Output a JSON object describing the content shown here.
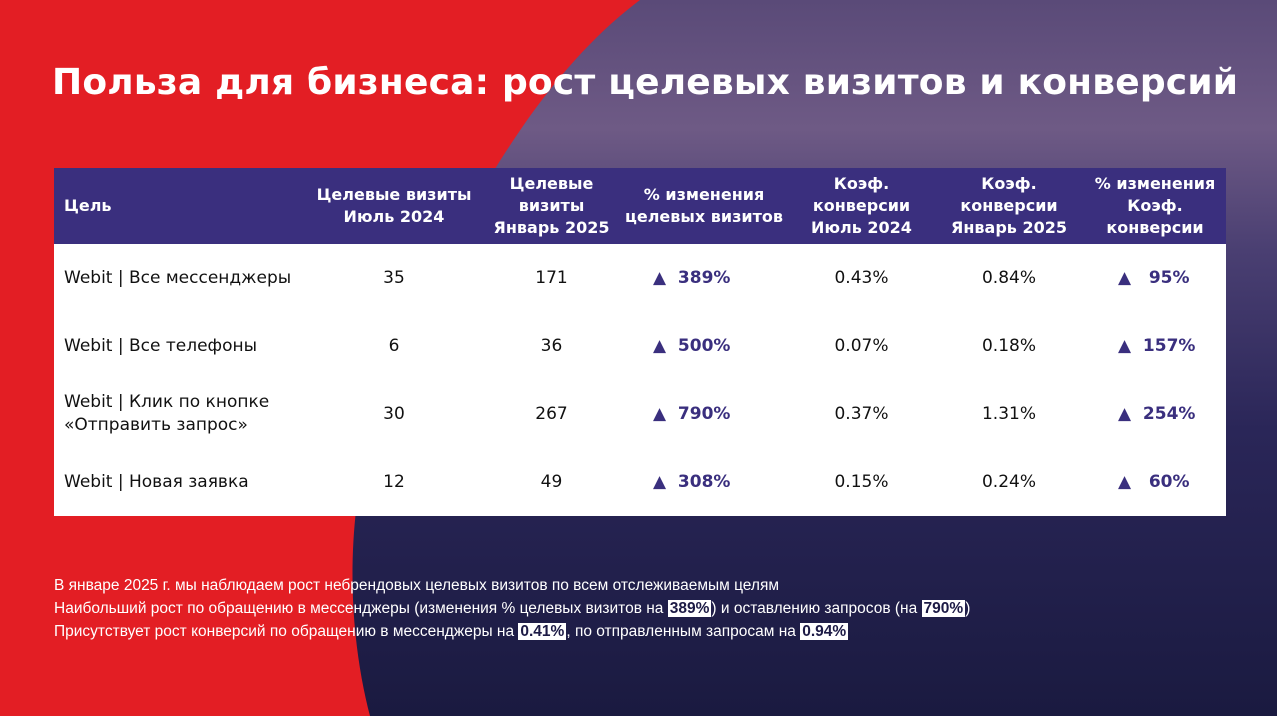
{
  "title": "Польза для бизнеса: рост целевых визитов и конверсий",
  "colors": {
    "brand_red": "#e31e24",
    "header_purple": "#3a2f7e"
  },
  "table": {
    "headers": [
      "Цель",
      "Целевые визиты Июль 2024",
      "Целевые визиты Январь 2025",
      "% изменения целевых визитов",
      "Коэф. конверсии Июль 2024",
      "Коэф. конверсии Январь 2025",
      "% изменения Коэф. конверсии"
    ],
    "rows": [
      [
        "Webit | Все мессенджеры",
        "35",
        "171",
        "▲  389%",
        "0.43%",
        "0.84%",
        "▲   95%"
      ],
      [
        "Webit | Все телефоны",
        "6",
        "36",
        "▲  500%",
        "0.07%",
        "0.18%",
        "▲  157%"
      ],
      [
        "Webit | Клик по кнопке «Отправить запрос»",
        "30",
        "267",
        "▲  790%",
        "0.37%",
        "1.31%",
        "▲  254%"
      ],
      [
        "Webit | Новая заявка",
        "12",
        "49",
        "▲  308%",
        "0.15%",
        "0.24%",
        "▲   60%"
      ]
    ]
  },
  "notes": {
    "line1": "В январе 2025 г. мы наблюдаем рост небрендовых целевых визитов по всем отслеживаемым целям",
    "line2a": "Наибольший рост по обращению в мессенджеры (изменения % целевых визитов на ",
    "line2b": "389%",
    "line2c": ") и оставлению запросов (на ",
    "line2d": "790%",
    "line2e": ")",
    "line3a": "Присутствует рост конверсий по обращению в мессенджеры на ",
    "line3b": "0.41%",
    "line3c": ", по отправленным запросам на ",
    "line3d": "0.94%"
  }
}
